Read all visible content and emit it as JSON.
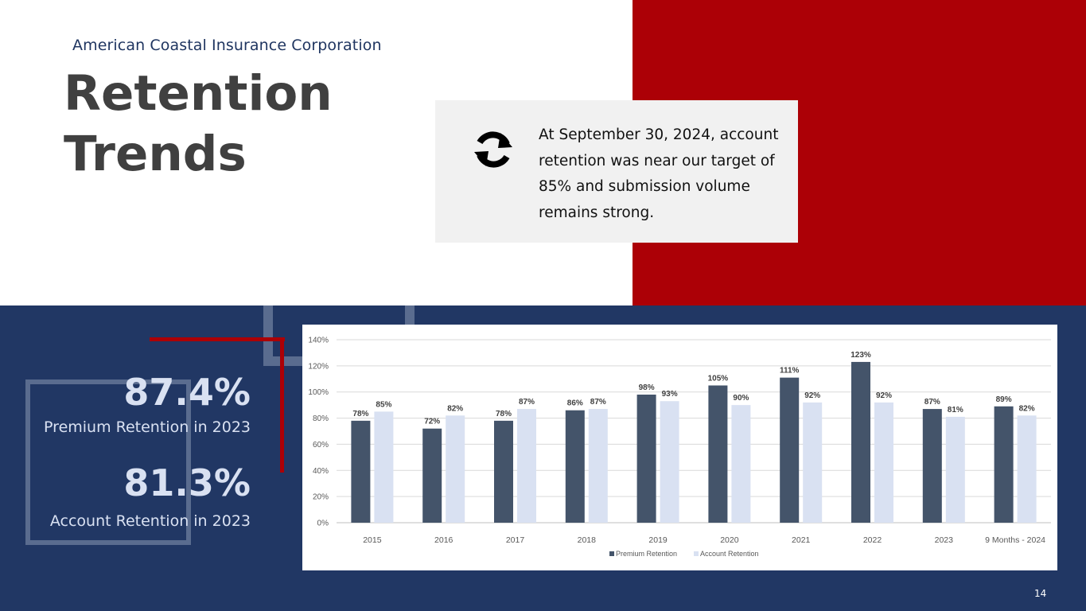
{
  "company": "American Coastal Insurance Corporation",
  "title_line1": "Retention",
  "title_line2": "Trends",
  "callout_text": "At September 30, 2024, account retention was near our target of 85% and submission volume remains strong.",
  "stats": [
    {
      "value": "87.4%",
      "label": "Premium Retention in 2023"
    },
    {
      "value": "81.3%",
      "label": "Account Retention in 2023"
    }
  ],
  "page_number": "14",
  "colors": {
    "red": "#ac0006",
    "navy": "#213764",
    "premium_bar": "#44546a",
    "account_bar": "#d9e1f2"
  },
  "chart_data": {
    "type": "bar",
    "categories": [
      "2015",
      "2016",
      "2017",
      "2018",
      "2019",
      "2020",
      "2021",
      "2022",
      "2023",
      "9 Months - 2024"
    ],
    "series": [
      {
        "name": "Premium Retention",
        "values": [
          78,
          72,
          78,
          86,
          98,
          105,
          111,
          123,
          87,
          89
        ],
        "labels": [
          "78%",
          "72%",
          "78%",
          "86%",
          "98%",
          "105%",
          "111%",
          "123%",
          "87%",
          "89%"
        ]
      },
      {
        "name": "Account Retention",
        "values": [
          85,
          82,
          87,
          87,
          93,
          90,
          92,
          92,
          81,
          82
        ],
        "labels": [
          "85%",
          "82%",
          "87%",
          "87%",
          "93%",
          "90%",
          "92%",
          "92%",
          "81%",
          "82%"
        ]
      }
    ],
    "yticks": [
      "0%",
      "20%",
      "40%",
      "60%",
      "80%",
      "100%",
      "120%",
      "140%"
    ],
    "ylim": [
      0,
      140
    ],
    "grid": true,
    "legend_position": "bottom"
  }
}
